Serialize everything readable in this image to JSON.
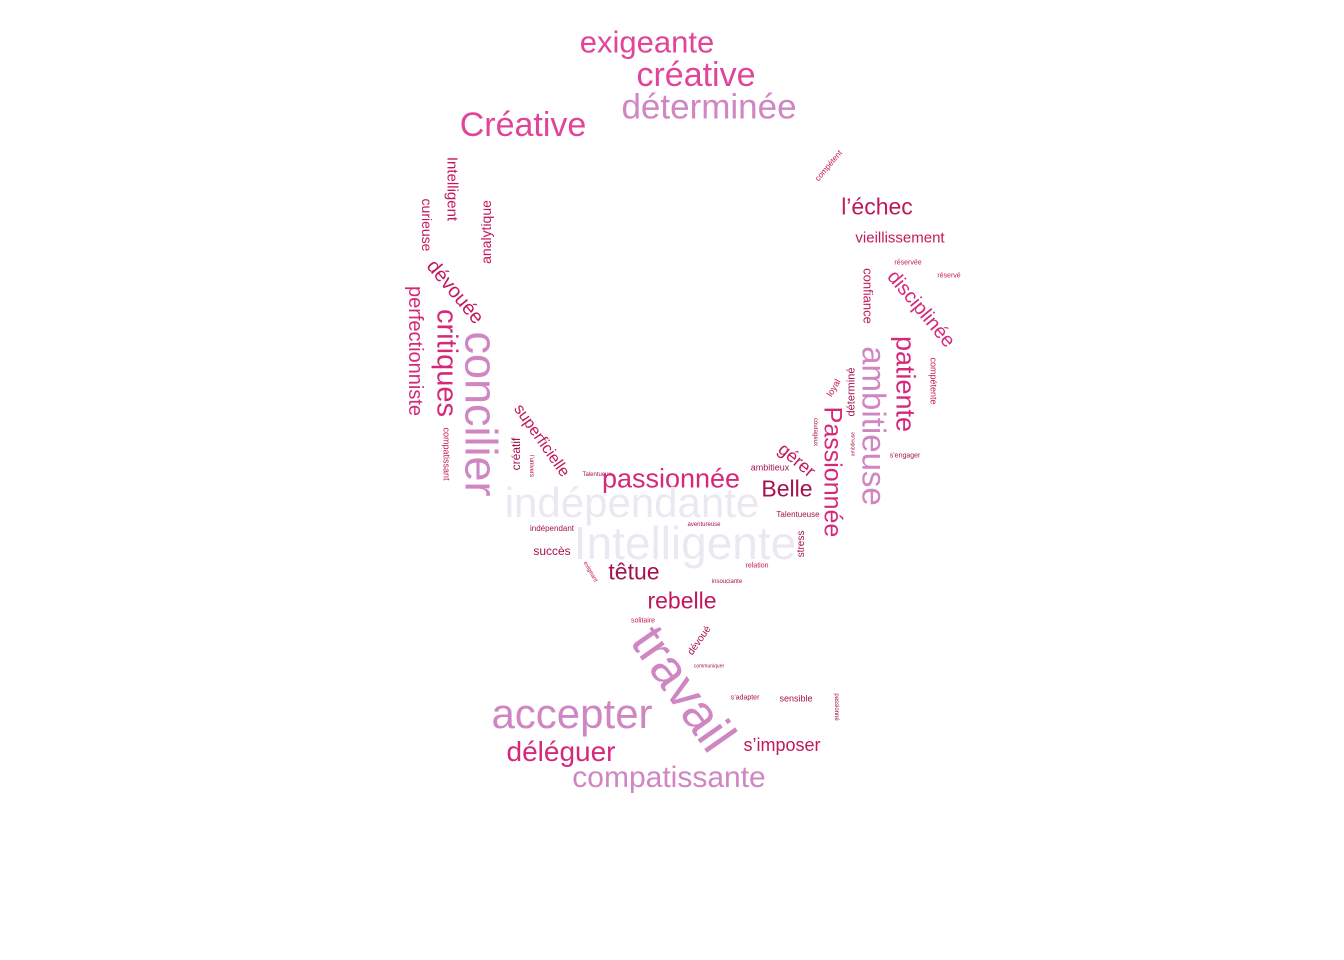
{
  "palette": {
    "hot_pink": "#e0459a",
    "deep_pink": "#c2185b",
    "magenta": "#d6287a",
    "orchid": "#cf86c2",
    "dark_rose": "#a4124f",
    "pale_lavender": "#ece8f2",
    "background": "#ffffff"
  },
  "words": [
    {
      "id": "w-exigeante-1",
      "text": "exigeante",
      "color": "#e0459a"
    },
    {
      "id": "w-creative-lower",
      "text": "créative",
      "color": "#e0459a"
    },
    {
      "id": "w-determinee-1",
      "text": "déterminée",
      "color": "#cf86c2"
    },
    {
      "id": "w-creative-cap",
      "text": "Créative",
      "color": "#e0459a"
    },
    {
      "id": "w-competent",
      "text": "compétent",
      "color": "#c2185b"
    },
    {
      "id": "w-intelligent",
      "text": "Intelligent",
      "color": "#c2185b"
    },
    {
      "id": "w-curieuse",
      "text": "curieuse",
      "color": "#c2185b"
    },
    {
      "id": "w-analytique",
      "text": "analytique",
      "color": "#c2185b"
    },
    {
      "id": "w-echec",
      "text": "l’échec",
      "color": "#c2185b"
    },
    {
      "id": "w-vieillissement",
      "text": "vieillissement",
      "color": "#c2185b"
    },
    {
      "id": "w-reservee",
      "text": "réservée",
      "color": "#c2185b"
    },
    {
      "id": "w-reserve",
      "text": "réservé",
      "color": "#c2185b"
    },
    {
      "id": "w-confiance",
      "text": "confiance",
      "color": "#c2185b"
    },
    {
      "id": "w-disciplinee",
      "text": "disciplinée",
      "color": "#d6287a"
    },
    {
      "id": "w-devouee",
      "text": "dévouée",
      "color": "#c2185b"
    },
    {
      "id": "w-perfectionniste",
      "text": "perfectionniste",
      "color": "#d6287a"
    },
    {
      "id": "w-critiques",
      "text": "critiques",
      "color": "#d6287a"
    },
    {
      "id": "w-concilier",
      "text": "concilier",
      "color": "#cf86c2"
    },
    {
      "id": "w-patiente",
      "text": "patiente",
      "color": "#d6287a"
    },
    {
      "id": "w-ambitieuse",
      "text": "ambitieuse",
      "color": "#cf86c2"
    },
    {
      "id": "w-competente",
      "text": "compétente",
      "color": "#c2185b"
    },
    {
      "id": "w-loyal",
      "text": "loyal",
      "color": "#c2185b"
    },
    {
      "id": "w-determine",
      "text": "déterminé",
      "color": "#a4124f"
    },
    {
      "id": "w-passionnee-cap",
      "text": "Passionnée",
      "color": "#d6287a"
    },
    {
      "id": "w-sengager",
      "text": "s’engager",
      "color": "#a4124f"
    },
    {
      "id": "w-ambitieuse-small",
      "text": "ambitieuse",
      "color": "#a4124f"
    },
    {
      "id": "w-courageux",
      "text": "courageux",
      "color": "#a4124f"
    },
    {
      "id": "w-compatissant",
      "text": "compatissant",
      "color": "#c2185b"
    },
    {
      "id": "w-superficielle",
      "text": "superficielle",
      "color": "#c2185b"
    },
    {
      "id": "w-creatif",
      "text": "créatif",
      "color": "#a4124f"
    },
    {
      "id": "w-lunivers",
      "text": "l’univers",
      "color": "#a4124f"
    },
    {
      "id": "w-talentueux-small",
      "text": "Talentueux",
      "color": "#a4124f"
    },
    {
      "id": "w-passionnee",
      "text": "passionnée",
      "color": "#d6287a"
    },
    {
      "id": "w-gerer",
      "text": "gérer",
      "color": "#c2185b"
    },
    {
      "id": "w-ambitieux",
      "text": "ambitieux",
      "color": "#a4124f"
    },
    {
      "id": "w-independante",
      "text": "indépendante",
      "color": "#ece8f2"
    },
    {
      "id": "w-belle",
      "text": "Belle",
      "color": "#a4124f"
    },
    {
      "id": "w-talentueuse",
      "text": "Talentueuse",
      "color": "#a4124f"
    },
    {
      "id": "w-independant",
      "text": "indépendant",
      "color": "#a4124f"
    },
    {
      "id": "w-aventureuse",
      "text": "aventureuse",
      "color": "#a4124f"
    },
    {
      "id": "w-intelligente",
      "text": "Intelligente",
      "color": "#ece8f2"
    },
    {
      "id": "w-stress",
      "text": "stress",
      "color": "#a4124f"
    },
    {
      "id": "w-succes",
      "text": "succès",
      "color": "#a4124f"
    },
    {
      "id": "w-exigeant",
      "text": "exigeant",
      "color": "#c2185b"
    },
    {
      "id": "w-tetue",
      "text": "têtue",
      "color": "#a4124f"
    },
    {
      "id": "w-relation",
      "text": "relation",
      "color": "#c2185b"
    },
    {
      "id": "w-insouciante",
      "text": "insouciante",
      "color": "#a4124f"
    },
    {
      "id": "w-rebelle",
      "text": "rebelle",
      "color": "#c2185b"
    },
    {
      "id": "w-solitaire",
      "text": "solitaire",
      "color": "#c2185b"
    },
    {
      "id": "w-devoue",
      "text": "dévoué",
      "color": "#a4124f"
    },
    {
      "id": "w-travail",
      "text": "travail",
      "color": "#cf86c2"
    },
    {
      "id": "w-communiquer",
      "text": "communiquer",
      "color": "#a4124f"
    },
    {
      "id": "w-sadapter",
      "text": "s’adapter",
      "color": "#a4124f"
    },
    {
      "id": "w-sensible",
      "text": "sensible",
      "color": "#a4124f"
    },
    {
      "id": "w-passionne",
      "text": "passionné",
      "color": "#a4124f"
    },
    {
      "id": "w-accepter",
      "text": "accepter",
      "color": "#cf86c2"
    },
    {
      "id": "w-simposer",
      "text": "s’imposer",
      "color": "#c2185b"
    },
    {
      "id": "w-deleguer",
      "text": "déléguer",
      "color": "#d6287a"
    },
    {
      "id": "w-compatissante",
      "text": "compatissante",
      "color": "#cf86c2"
    }
  ]
}
